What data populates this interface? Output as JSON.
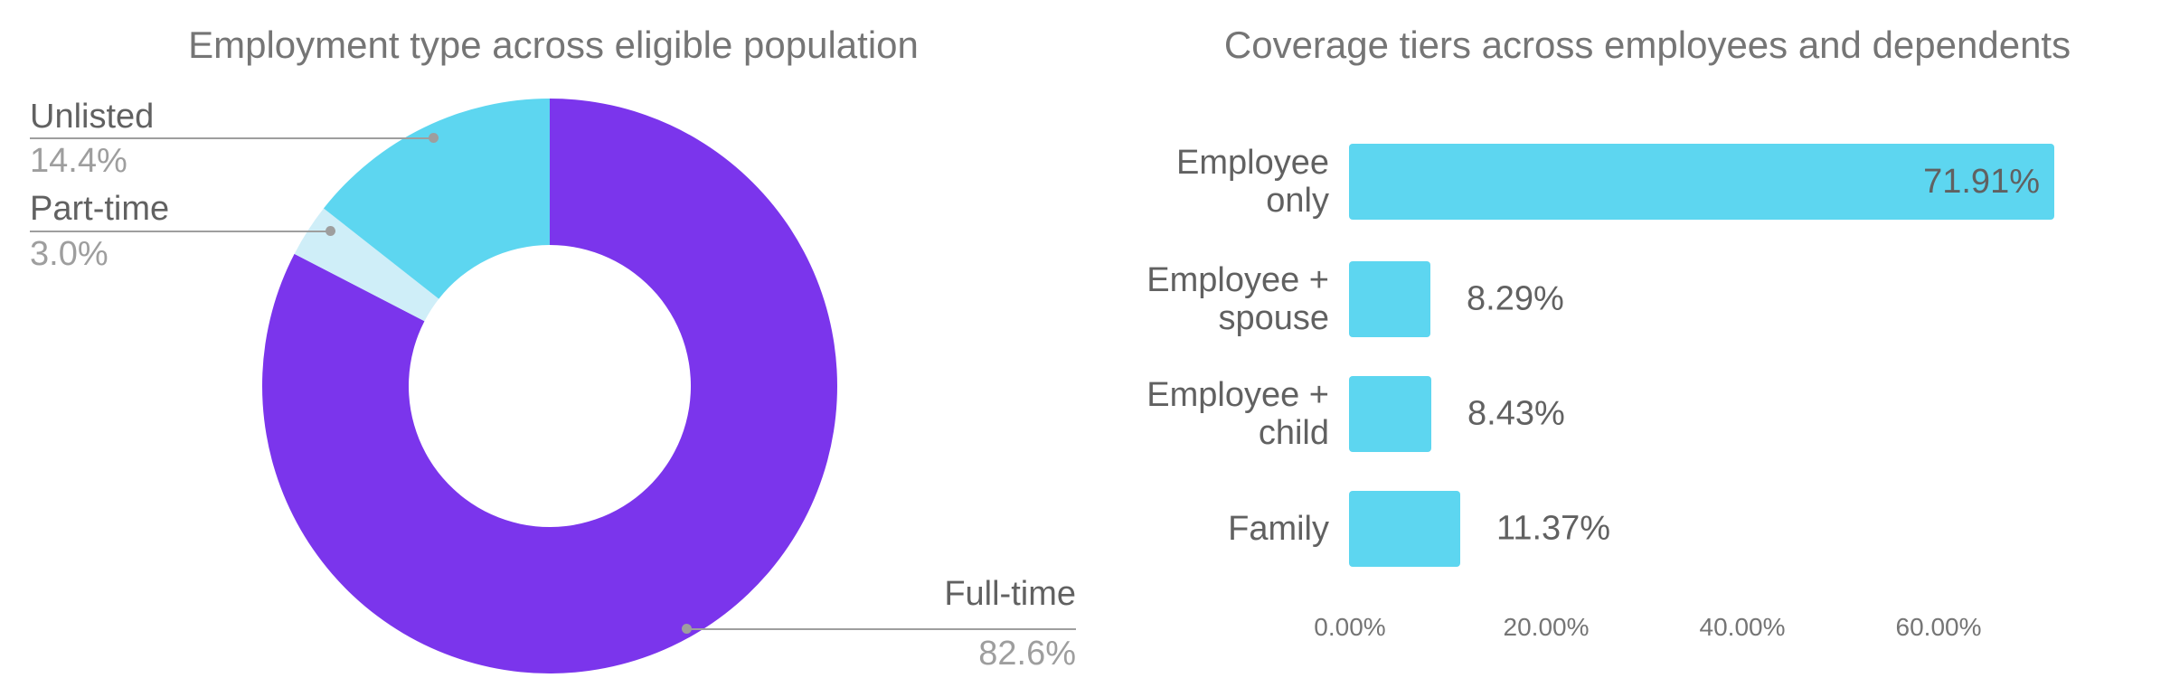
{
  "page": {
    "background": "#ffffff"
  },
  "colors": {
    "title_gray": "#757575",
    "label_dark_gray": "#616161",
    "label_light_gray": "#9e9e9e",
    "axis_gray": "#757575",
    "leader_line_gray": "#9e9e9e",
    "purple": "#7b35ec",
    "cyan": "#5dd6f0",
    "pale_cyan": "#cfeef8"
  },
  "chart_data": [
    {
      "type": "pie",
      "subtype": "donut",
      "title": "Employment type across eligible population",
      "labels": [
        "Full-time",
        "Part-time",
        "Unlisted"
      ],
      "values": [
        82.6,
        3.0,
        14.4
      ],
      "value_labels": [
        "82.6%",
        "3.0%",
        "14.4%"
      ],
      "colors": [
        "#7b35ec",
        "#cfeef8",
        "#5dd6f0"
      ],
      "start_angle_deg": 0,
      "direction": "clockwise",
      "inner_radius_ratio": 0.49,
      "legend": "none",
      "label_style": "outside-callout-with-leader-line"
    },
    {
      "type": "bar",
      "orientation": "horizontal",
      "title": "Coverage tiers across employees and dependents",
      "categories": [
        "Employee only",
        "Employee + spouse",
        "Employee + child",
        "Family"
      ],
      "categories_display": [
        "Employee\nonly",
        "Employee +\nspouse",
        "Employee +\nchild",
        "Family"
      ],
      "values": [
        71.91,
        8.29,
        8.43,
        11.37
      ],
      "value_labels": [
        "71.91%",
        "8.29%",
        "8.43%",
        "11.37%"
      ],
      "value_label_placement": [
        "inside-end",
        "outside-end",
        "outside-end",
        "outside-end"
      ],
      "bar_color": "#5dd6f0",
      "x_ticks": [
        "0.00%",
        "20.00%",
        "40.00%",
        "60.00%"
      ],
      "x_tick_values": [
        0,
        20,
        40,
        60
      ],
      "xlim": [
        0,
        80
      ],
      "grid": false,
      "legend": "none"
    }
  ]
}
